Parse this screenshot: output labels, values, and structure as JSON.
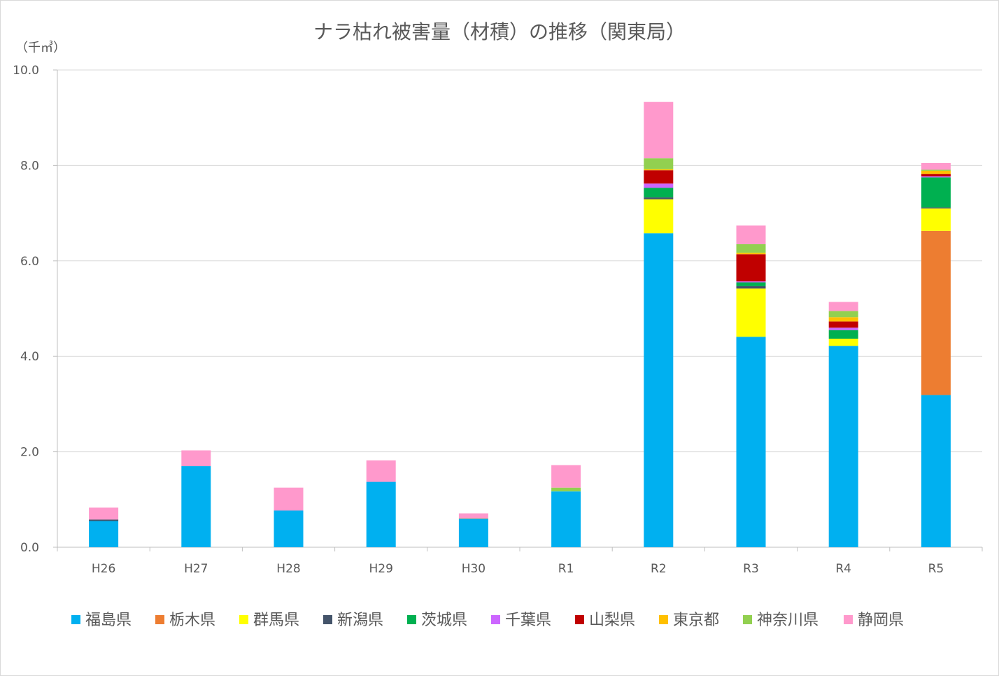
{
  "chart_data": {
    "type": "bar",
    "stacked": true,
    "title": "ナラ枯れ被害量（材積）の推移（関東局）",
    "unit": "（千㎥）",
    "xlabel": "",
    "ylabel": "",
    "ylim": [
      0,
      10
    ],
    "yticks": [
      "0.0",
      "2.0",
      "4.0",
      "6.0",
      "8.0",
      "10.0"
    ],
    "grid": true,
    "legend_position": "bottom",
    "categories": [
      "H26",
      "H27",
      "H28",
      "H29",
      "H30",
      "R1",
      "R2",
      "R3",
      "R4",
      "R5"
    ],
    "series": [
      {
        "name": "福島県",
        "color": "#00B0F0",
        "values": [
          0.55,
          1.7,
          0.77,
          1.37,
          0.59,
          1.17,
          6.58,
          4.41,
          4.22,
          3.19
        ]
      },
      {
        "name": "栃木県",
        "color": "#ED7D31",
        "values": [
          0,
          0,
          0,
          0,
          0,
          0,
          0,
          0,
          0,
          3.44
        ]
      },
      {
        "name": "群馬県",
        "color": "#FFFF00",
        "values": [
          0,
          0,
          0,
          0,
          0,
          0,
          0.71,
          1.01,
          0.15,
          0.47
        ]
      },
      {
        "name": "新潟県",
        "color": "#44546A",
        "values": [
          0.03,
          0,
          0,
          0,
          0,
          0,
          0.04,
          0.05,
          0,
          0.02
        ]
      },
      {
        "name": "茨城県",
        "color": "#00B050",
        "values": [
          0,
          0,
          0,
          0,
          0.01,
          0,
          0.2,
          0.08,
          0.18,
          0.63
        ]
      },
      {
        "name": "千葉県",
        "color": "#CC66FF",
        "values": [
          0,
          0,
          0,
          0,
          0,
          0,
          0.09,
          0.02,
          0.05,
          0.02
        ]
      },
      {
        "name": "山梨県",
        "color": "#C00000",
        "values": [
          0,
          0,
          0,
          0,
          0,
          0,
          0.28,
          0.57,
          0.13,
          0.05
        ]
      },
      {
        "name": "東京都",
        "color": "#FFC000",
        "values": [
          0,
          0,
          0,
          0,
          0,
          0,
          0.02,
          0.03,
          0.09,
          0.07
        ]
      },
      {
        "name": "神奈川県",
        "color": "#92D050",
        "values": [
          0,
          0,
          0,
          0,
          0,
          0.08,
          0.23,
          0.18,
          0.13,
          0.02
        ]
      },
      {
        "name": "静岡県",
        "color": "#FF99CC",
        "values": [
          0.25,
          0.33,
          0.48,
          0.45,
          0.11,
          0.47,
          1.18,
          0.39,
          0.19,
          0.14
        ]
      }
    ]
  }
}
